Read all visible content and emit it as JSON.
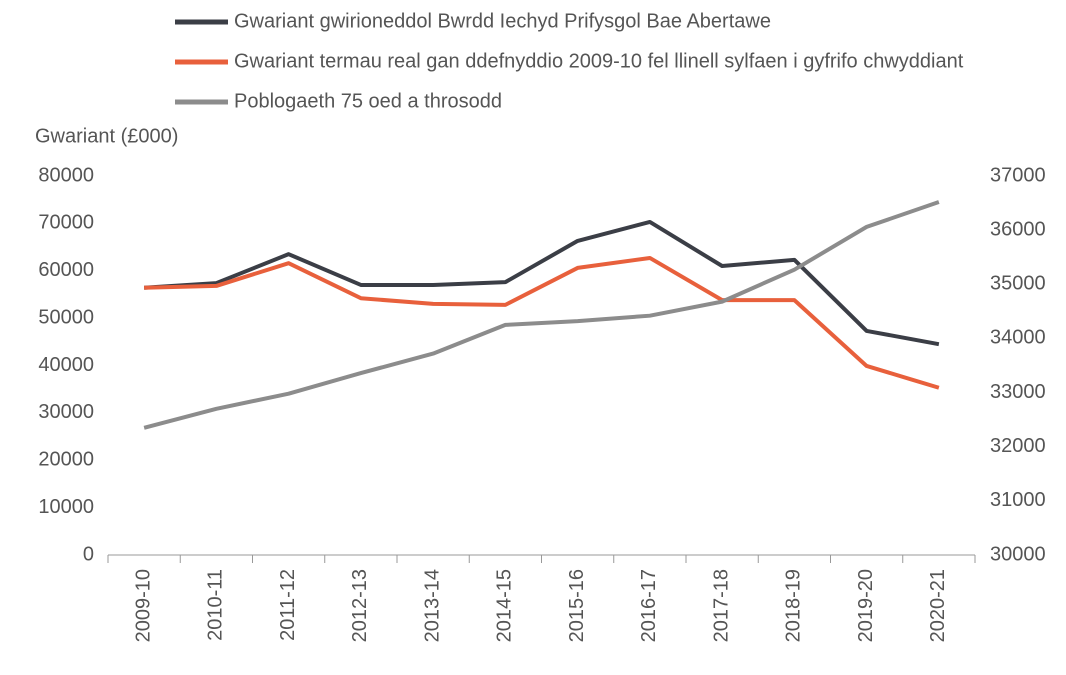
{
  "chart_data": {
    "type": "line",
    "y_label": "Gwariant (£000)",
    "categories": [
      "2009-10",
      "2010-11",
      "2011-12",
      "2012-13",
      "2013-14",
      "2014-15",
      "2015-16",
      "2016-17",
      "2017-18",
      "2018-19",
      "2019-20",
      "2020-21"
    ],
    "series": [
      {
        "name": "Gwariant gwirioneddol Bwrdd Iechyd Prifysgol Bae Abertawe",
        "color": "#3b3e46",
        "values": [
          56400,
          57400,
          63500,
          57000,
          57000,
          57600,
          66300,
          70300,
          61000,
          62300,
          47300,
          44500
        ]
      },
      {
        "name": "Gwariant termau real gan ddefnyddio 2009-10 fel llinell sylfaen i gyfrifo chwyddiant",
        "color": "#e8603c",
        "values": [
          56400,
          56800,
          61600,
          54200,
          53000,
          52800,
          60600,
          62700,
          53800,
          53800,
          39900,
          35300
        ]
      },
      {
        "name": "Poblogaeth 75 oed a throsodd",
        "color": "#8c8c8c",
        "axis": "y2",
        "values": [
          32350,
          32700,
          32980,
          33360,
          33720,
          34250,
          34320,
          34420,
          34680,
          35270,
          36060,
          36520
        ]
      }
    ],
    "ylim": [
      0,
      80000
    ],
    "yticks": [
      0,
      10000,
      20000,
      30000,
      40000,
      50000,
      60000,
      70000,
      80000
    ],
    "y2lim": [
      30000,
      37000
    ],
    "y2ticks": [
      30000,
      31000,
      32000,
      33000,
      34000,
      35000,
      36000,
      37000
    ],
    "grid": false
  }
}
